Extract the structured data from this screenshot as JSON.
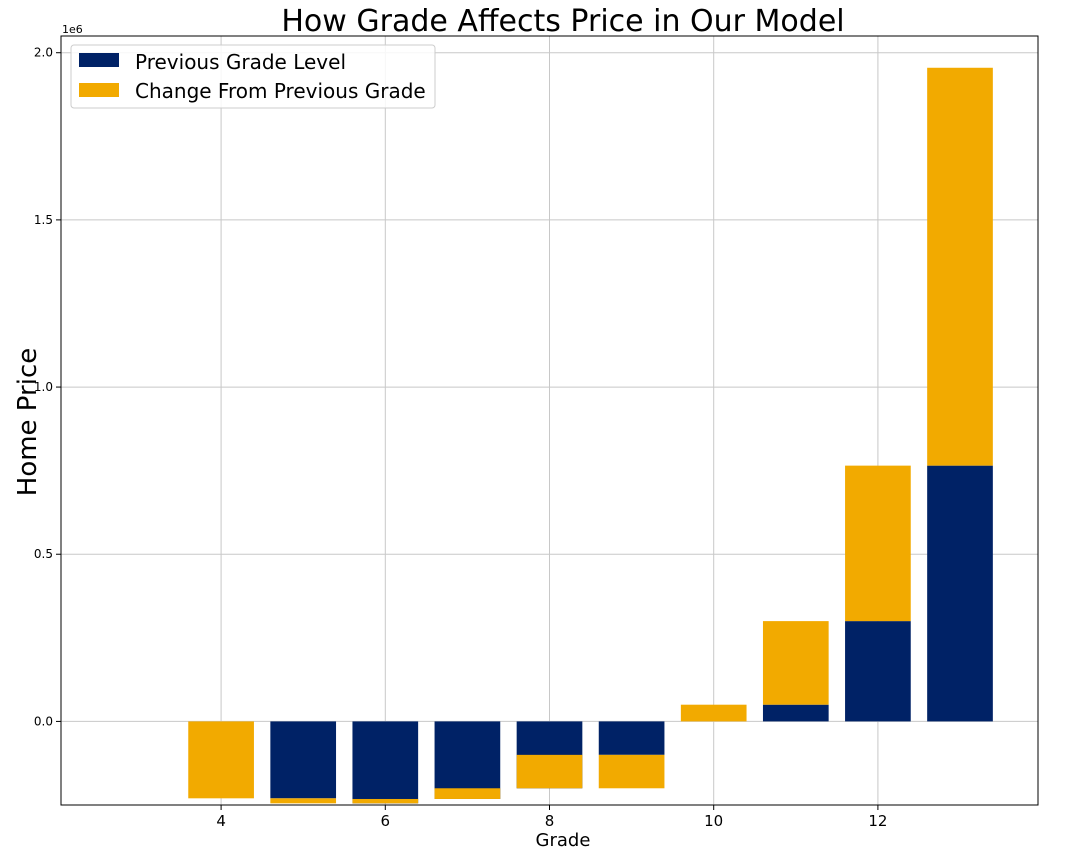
{
  "chart_data": {
    "type": "bar",
    "stacked": true,
    "title": "How Grade Affects Price in Our Model",
    "xlabel": "Grade",
    "ylabel": "Home Price",
    "y_offset_label": "1e6",
    "xlim": [
      2.05,
      13.95
    ],
    "ylim": [
      -250000,
      2050000
    ],
    "x_ticks": [
      4,
      6,
      8,
      10,
      12
    ],
    "y_ticks": [
      0,
      500000,
      1000000,
      1500000,
      2000000
    ],
    "y_tick_labels": [
      "0.0",
      "0.5",
      "1.0",
      "1.5",
      "2.0"
    ],
    "grid": true,
    "legend_position": "upper left",
    "x": [
      4,
      5,
      6,
      7,
      8,
      9,
      10,
      11,
      12,
      13
    ],
    "series": [
      {
        "name": "Previous Grade Level",
        "color": "#002266",
        "values": [
          0,
          -230000,
          -245000,
          -232000,
          -200000,
          -100000,
          0,
          50000,
          300000,
          765000
        ]
      },
      {
        "name": "Change From Previous Grade",
        "color": "#f2aa00",
        "values": [
          -230000,
          -15000,
          13000,
          32000,
          100000,
          -100000,
          50000,
          250000,
          465000,
          1190000
        ]
      }
    ]
  }
}
